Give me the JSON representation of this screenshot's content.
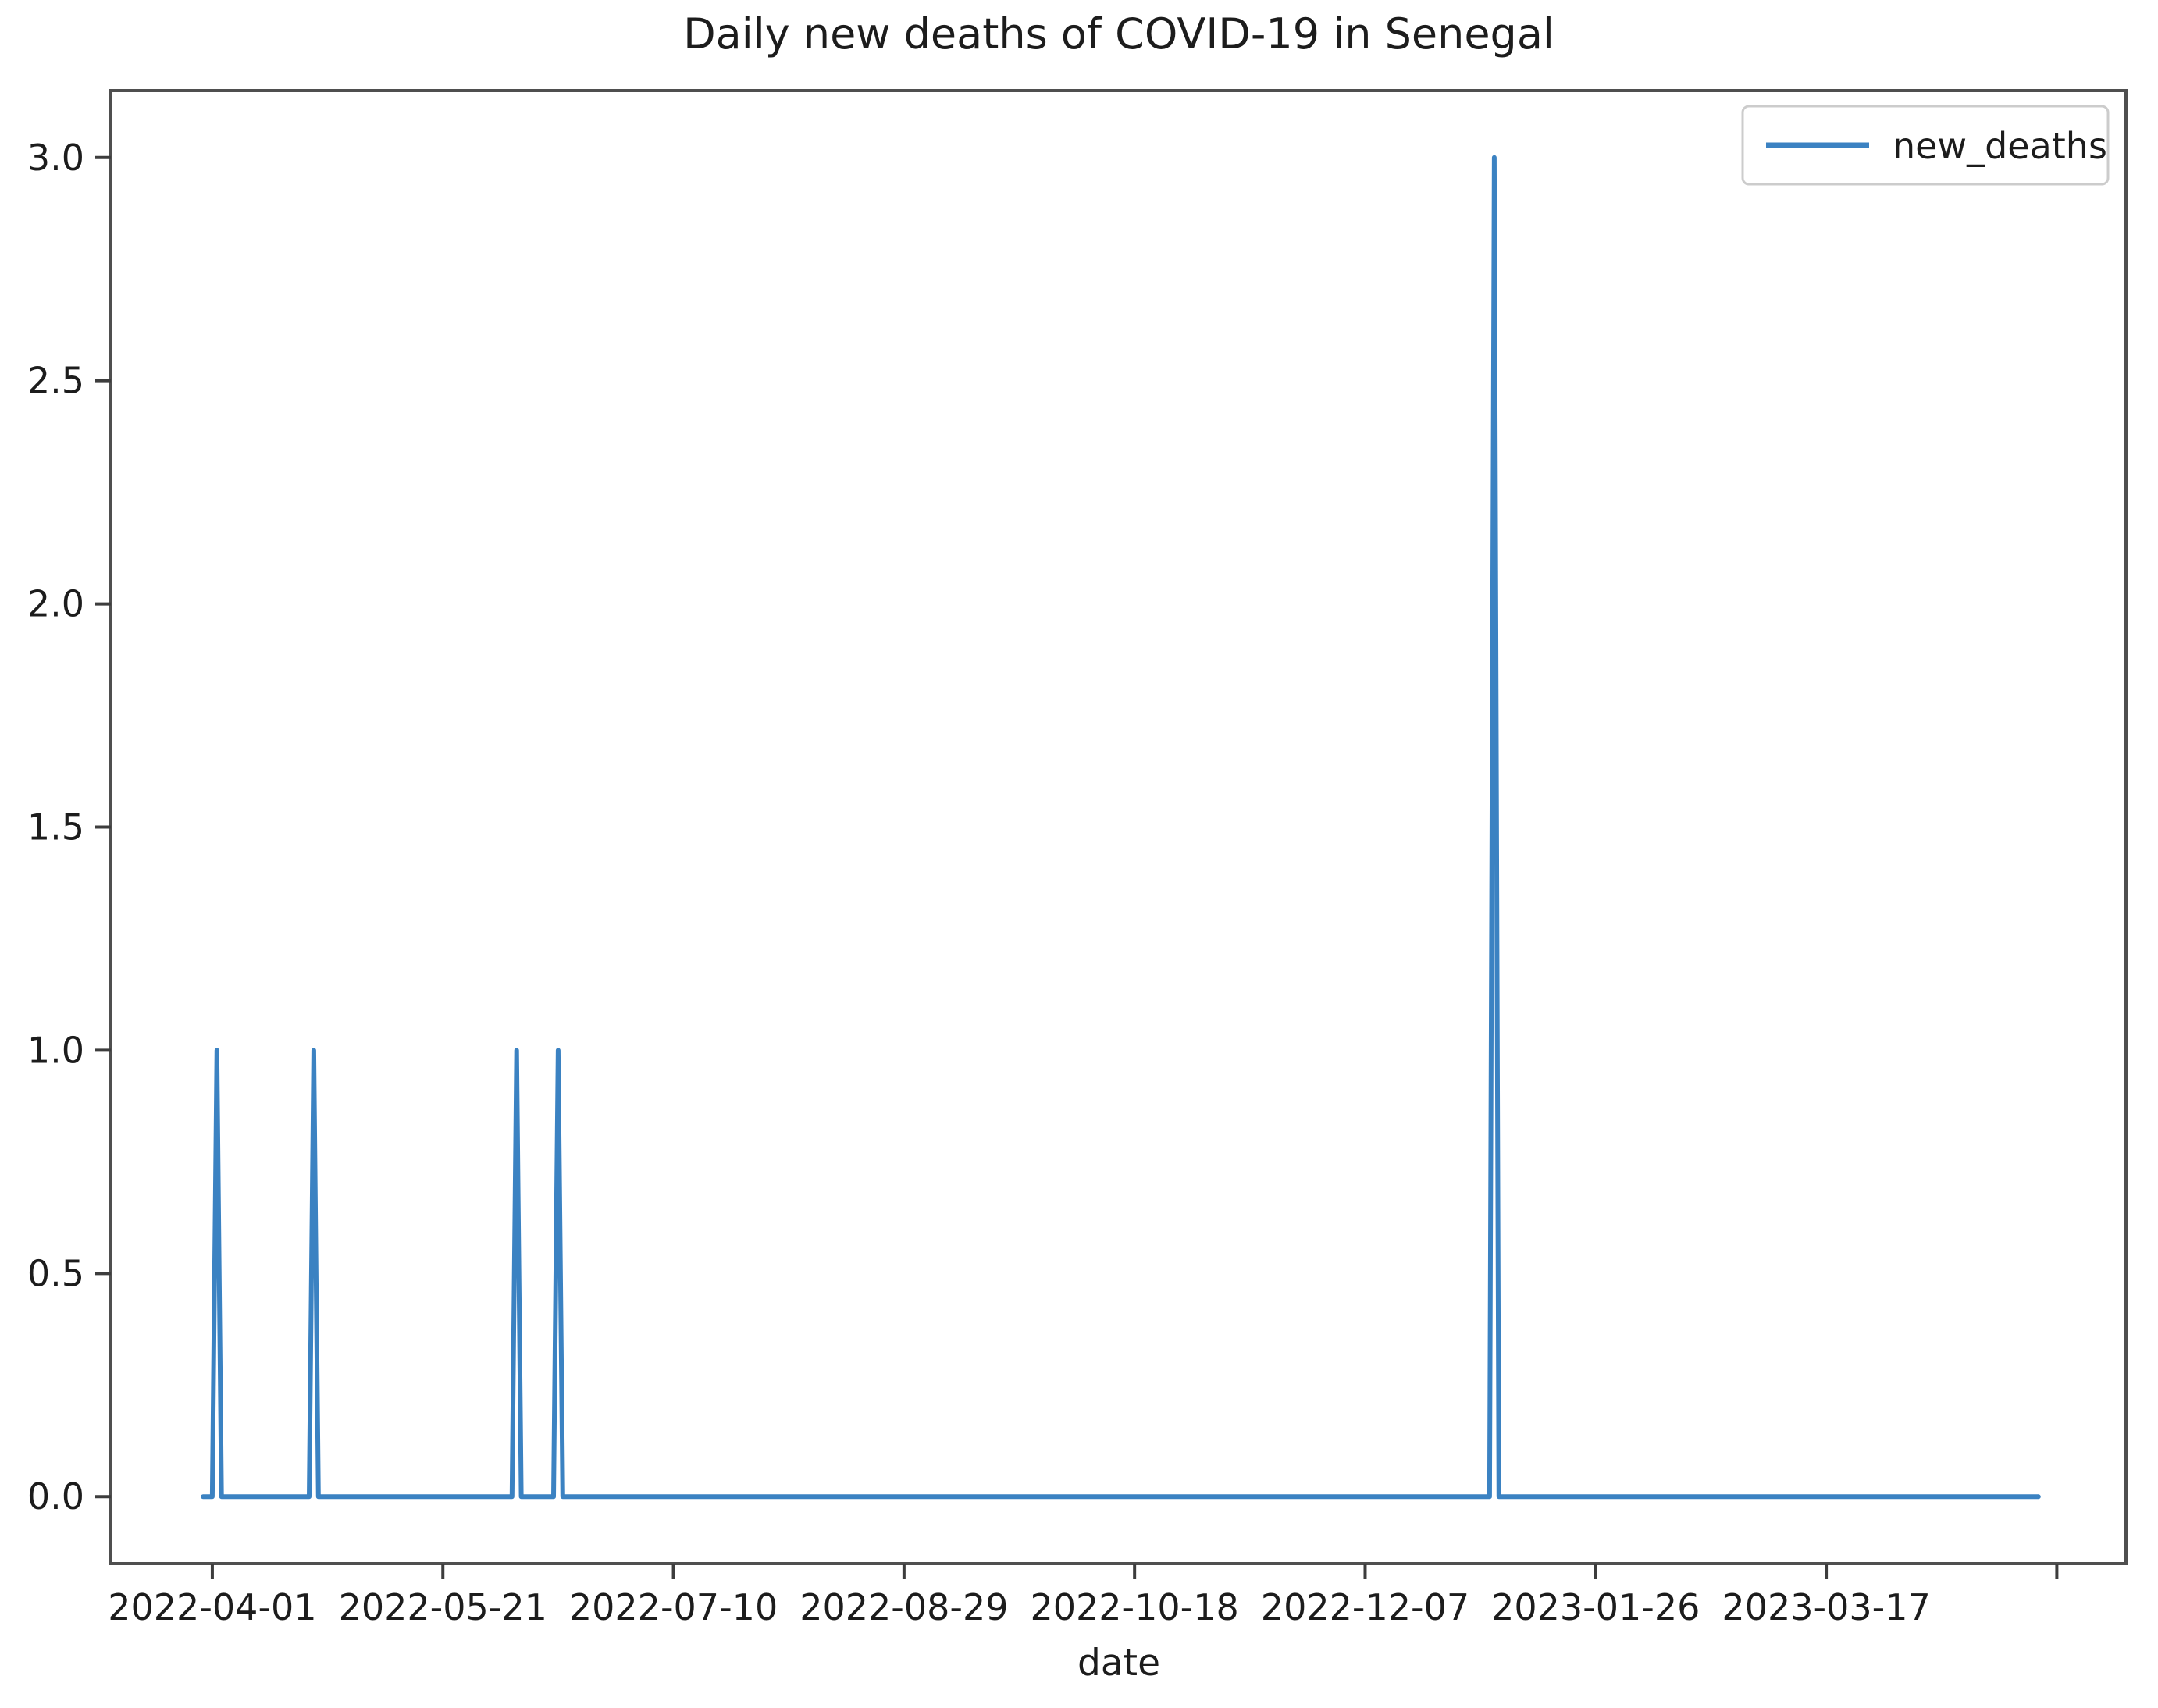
{
  "figure": {
    "background": "#ffffff"
  },
  "colors": {
    "line": "#3b82c2",
    "spine": "#4f4f4f",
    "tick": "#3d3d3d",
    "text": "#1c1c1c",
    "legend_border": "#cccccc"
  },
  "legend": {
    "label": "new_deaths",
    "position": "upper right"
  },
  "chart_data": {
    "type": "line",
    "title": "Daily new deaths of COVID-19 in Senegal",
    "xlabel": "date",
    "ylabel": "",
    "grid": false,
    "legend_position": "upper right",
    "xlim": [
      "2022-03-10",
      "2023-05-21"
    ],
    "ylim": [
      -0.15,
      3.15
    ],
    "series": [
      {
        "name": "new_deaths",
        "color": "#3b82c2",
        "date_start": "2022-03-30",
        "date_end": "2023-05-02",
        "value_on_all_other_days": 0,
        "spikes": [
          {
            "date": "2022-04-02",
            "value": 1
          },
          {
            "date": "2022-04-23",
            "value": 1
          },
          {
            "date": "2022-06-06",
            "value": 1
          },
          {
            "date": "2022-06-15",
            "value": 1
          },
          {
            "date": "2023-01-04",
            "value": 3
          }
        ]
      }
    ],
    "x_ticks": [
      {
        "date": "2022-04-01",
        "label": "2022-04-01"
      },
      {
        "date": "2022-05-21",
        "label": "2022-05-21"
      },
      {
        "date": "2022-07-10",
        "label": "2022-07-10"
      },
      {
        "date": "2022-08-29",
        "label": "2022-08-29"
      },
      {
        "date": "2022-10-18",
        "label": "2022-10-18"
      },
      {
        "date": "2022-12-07",
        "label": "2022-12-07"
      },
      {
        "date": "2023-01-26",
        "label": "2023-01-26"
      },
      {
        "date": "2023-03-17",
        "label": "2023-03-17"
      },
      {
        "date": "2023-05-06",
        "label": ""
      }
    ],
    "y_ticks": [
      {
        "value": 0.0,
        "label": "0.0"
      },
      {
        "value": 0.5,
        "label": "0.5"
      },
      {
        "value": 1.0,
        "label": "1.0"
      },
      {
        "value": 1.5,
        "label": "1.5"
      },
      {
        "value": 2.0,
        "label": "2.0"
      },
      {
        "value": 2.5,
        "label": "2.5"
      },
      {
        "value": 3.0,
        "label": "3.0"
      }
    ]
  }
}
